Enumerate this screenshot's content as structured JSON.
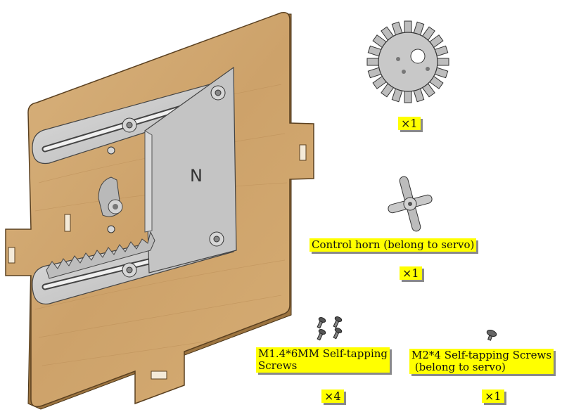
{
  "figure": {
    "components": [
      {
        "name": "gear",
        "quantity": "×1"
      },
      {
        "name": "Control horn (belong to servo)",
        "quantity": "×1"
      },
      {
        "name": "M1.4*6MM Self-tapping Screws",
        "quantity": "×4"
      },
      {
        "name": "M2*4 Self-tapping Screws (belong to servo)",
        "quantity": "×1"
      }
    ],
    "plate_mark": "N",
    "labels": {
      "gear_qty": "×1",
      "horn_name": "Control horn (belong to servo)",
      "horn_qty": "×1",
      "m14_name": "M1.4*6MM Self-tapping\nScrews",
      "m14_qty": "×4",
      "m2_name": "M2*4 Self-tapping Screws\n (belong to servo)",
      "m2_qty": "×1"
    }
  },
  "colors": {
    "wood": "#c9a06a",
    "wood_edge": "#8f6a3c",
    "metal": "#c8c8c8",
    "label_bg": "#ffff00"
  }
}
